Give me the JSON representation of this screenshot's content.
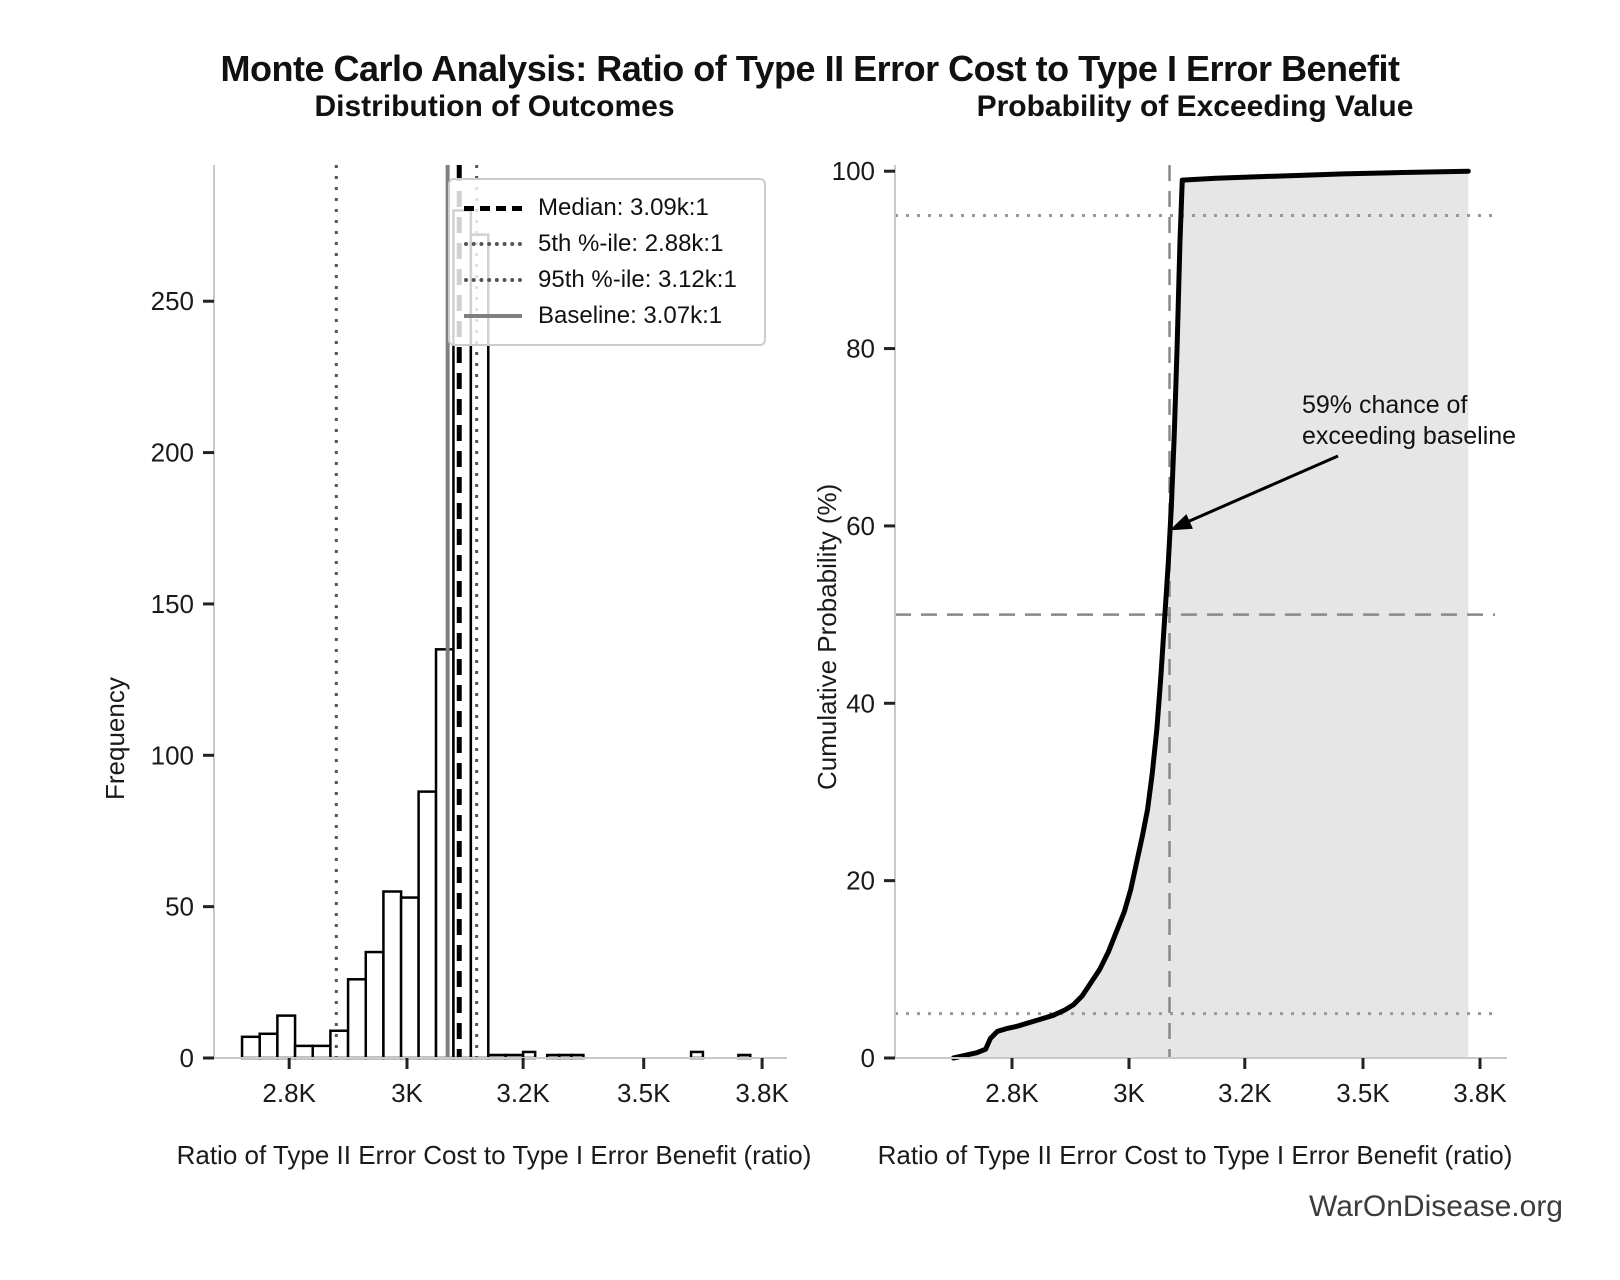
{
  "header": {
    "title": "Monte Carlo Analysis: Ratio of Type II Error Cost to Type I Error Benefit"
  },
  "watermark": "WarOnDisease.org",
  "chart_data": [
    {
      "type": "bar",
      "name": "histogram",
      "title": "Distribution of Outcomes",
      "xlabel": "Ratio of Type II Error Cost to Type I Error Benefit (ratio)",
      "ylabel": "Frequency",
      "x_ticks": [
        {
          "v": 2800,
          "label": "2.8K"
        },
        {
          "v": 3000,
          "label": "3K"
        },
        {
          "v": 3200,
          "label": "3.2K"
        },
        {
          "v": 3500,
          "label": "3.5K"
        },
        {
          "v": 3800,
          "label": "3.8K"
        }
      ],
      "y_ticks": [
        0,
        50,
        100,
        150,
        200,
        250
      ],
      "ylim": [
        0,
        295
      ],
      "grid": false,
      "legend_position": "upper right",
      "bar_fill": "#ffffff",
      "bar_edge": "#000000",
      "bins": [
        {
          "start": 2720,
          "end": 2750,
          "count": 7
        },
        {
          "start": 2750,
          "end": 2780,
          "count": 8
        },
        {
          "start": 2780,
          "end": 2810,
          "count": 14
        },
        {
          "start": 2810,
          "end": 2840,
          "count": 4
        },
        {
          "start": 2840,
          "end": 2870,
          "count": 4
        },
        {
          "start": 2870,
          "end": 2900,
          "count": 9
        },
        {
          "start": 2900,
          "end": 2930,
          "count": 26
        },
        {
          "start": 2930,
          "end": 2960,
          "count": 35
        },
        {
          "start": 2960,
          "end": 2990,
          "count": 55
        },
        {
          "start": 2990,
          "end": 3020,
          "count": 53
        },
        {
          "start": 3020,
          "end": 3050,
          "count": 88
        },
        {
          "start": 3050,
          "end": 3080,
          "count": 135
        },
        {
          "start": 3080,
          "end": 3110,
          "count": 280
        },
        {
          "start": 3110,
          "end": 3140,
          "count": 272
        },
        {
          "start": 3140,
          "end": 3170,
          "count": 1
        },
        {
          "start": 3170,
          "end": 3200,
          "count": 1
        },
        {
          "start": 3200,
          "end": 3230,
          "count": 2
        },
        {
          "start": 3260,
          "end": 3290,
          "count": 1
        },
        {
          "start": 3290,
          "end": 3320,
          "count": 1
        },
        {
          "start": 3320,
          "end": 3350,
          "count": 1
        },
        {
          "start": 3620,
          "end": 3650,
          "count": 2
        },
        {
          "start": 3740,
          "end": 3770,
          "count": 1
        }
      ],
      "vlines": [
        {
          "name": "median",
          "value": 3090,
          "style": "dashed",
          "color": "#000000",
          "width": 5,
          "label": "Median: 3.09k:1"
        },
        {
          "name": "p5",
          "value": 2880,
          "style": "dotted",
          "color": "#555555",
          "width": 3,
          "label": "5th %-ile: 2.88k:1"
        },
        {
          "name": "p95",
          "value": 3120,
          "style": "dotted",
          "color": "#555555",
          "width": 3,
          "label": "95th %-ile: 3.12k:1"
        },
        {
          "name": "baseline",
          "value": 3070,
          "style": "solid",
          "color": "#808080",
          "width": 4,
          "label": "Baseline: 3.07k:1"
        }
      ]
    },
    {
      "type": "line",
      "name": "cumulative-probability",
      "title": "Probability of Exceeding Value",
      "xlabel": "Ratio of Type II Error Cost to Type I Error Benefit (ratio)",
      "ylabel": "Cumulative Probability (%)",
      "x_ticks": [
        {
          "v": 2800,
          "label": "2.8K"
        },
        {
          "v": 3000,
          "label": "3K"
        },
        {
          "v": 3200,
          "label": "3.2K"
        },
        {
          "v": 3500,
          "label": "3.5K"
        },
        {
          "v": 3800,
          "label": "3.8K"
        }
      ],
      "y_ticks": [
        0,
        20,
        40,
        60,
        80,
        100
      ],
      "ylim": [
        0,
        100.7
      ],
      "grid": false,
      "line_color": "#000000",
      "fill_color": "#e6e6e6",
      "curve": [
        [
          2700,
          0
        ],
        [
          2720,
          0.3
        ],
        [
          2740,
          0.6
        ],
        [
          2755,
          1.0
        ],
        [
          2763,
          2.2
        ],
        [
          2775,
          3.0
        ],
        [
          2790,
          3.3
        ],
        [
          2810,
          3.6
        ],
        [
          2830,
          4.0
        ],
        [
          2850,
          4.4
        ],
        [
          2870,
          4.8
        ],
        [
          2890,
          5.4
        ],
        [
          2905,
          6.0
        ],
        [
          2920,
          7.0
        ],
        [
          2935,
          8.5
        ],
        [
          2950,
          10.0
        ],
        [
          2965,
          12.0
        ],
        [
          2980,
          14.5
        ],
        [
          2992,
          16.5
        ],
        [
          3003,
          19.0
        ],
        [
          3013,
          22.0
        ],
        [
          3023,
          25.0
        ],
        [
          3032,
          28.0
        ],
        [
          3040,
          32.0
        ],
        [
          3048,
          37.0
        ],
        [
          3055,
          43.0
        ],
        [
          3062,
          50.0
        ],
        [
          3068,
          56.0
        ],
        [
          3073,
          62.0
        ],
        [
          3078,
          70.0
        ],
        [
          3083,
          80.0
        ],
        [
          3088,
          92.0
        ],
        [
          3092,
          99.0
        ],
        [
          3150,
          99.2
        ],
        [
          3250,
          99.4
        ],
        [
          3350,
          99.55
        ],
        [
          3450,
          99.7
        ],
        [
          3550,
          99.8
        ],
        [
          3650,
          99.9
        ],
        [
          3720,
          99.95
        ],
        [
          3770,
          100
        ]
      ],
      "hlines": [
        {
          "name": "h50",
          "value": 50,
          "style": "dashed",
          "color": "#888888",
          "width": 2.5
        },
        {
          "name": "h5",
          "value": 5,
          "style": "dotted",
          "color": "#999999",
          "width": 3
        },
        {
          "name": "h95",
          "value": 95,
          "style": "dotted",
          "color": "#999999",
          "width": 3
        }
      ],
      "vlines": [
        {
          "name": "baseline",
          "value": 3070,
          "style": "dashed",
          "color": "#888888",
          "width": 2.5
        }
      ],
      "annotation": {
        "line1": "59% chance of",
        "line2": "exceeding baseline",
        "point": {
          "value": 3070,
          "pct": 59.5
        }
      }
    }
  ]
}
